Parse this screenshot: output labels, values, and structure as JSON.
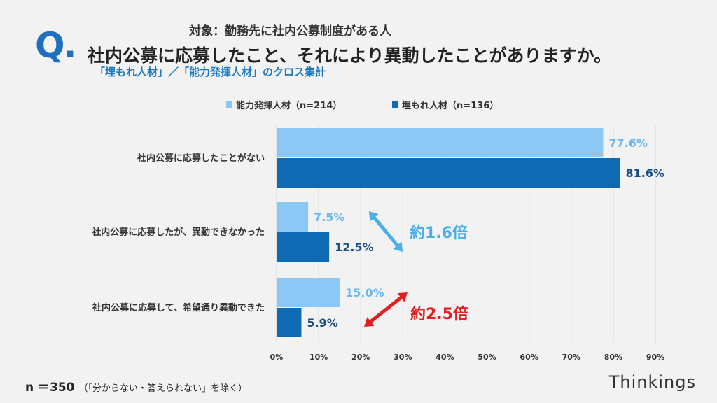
{
  "header": {
    "q_mark": "Q.",
    "target": "対象：勤務先に社内公募制度がある人",
    "title": "社内公募に応募したこと、それにより異動したことがありますか。",
    "subtitle": "「埋もれ人材」／「能力発揮人材」のクロス集計"
  },
  "footer": {
    "n": "n ＝350",
    "note": "（「分からない・答えられない」を除く）",
    "brand": "Thinkings"
  },
  "chart_data": {
    "type": "bar",
    "orientation": "horizontal",
    "categories": [
      "社内公募に応募したことがない",
      "社内公募に応募したが、異動できなかった",
      "社内公募に応募して、希望通り異動できた"
    ],
    "series": [
      {
        "name": "能力発揮人材（n=214）",
        "values": [
          77.6,
          7.5,
          15.0
        ],
        "labels": [
          "77.6%",
          "7.5%",
          "15.0%"
        ],
        "color": "#8cc8f5"
      },
      {
        "name": "埋もれ人材（n=136）",
        "values": [
          81.6,
          12.5,
          5.9
        ],
        "labels": [
          "81.6%",
          "12.5%",
          "5.9%"
        ],
        "color": "#0f6ab4"
      }
    ],
    "xlim": [
      0,
      90
    ],
    "xticks": [
      "0%",
      "10%",
      "20%",
      "30%",
      "40%",
      "50%",
      "60%",
      "70%",
      "80%",
      "90%"
    ],
    "grid": true,
    "legend": "top",
    "annotations": [
      {
        "text": "約1.6倍",
        "color": "#4aaee8"
      },
      {
        "text": "約2.5倍",
        "color": "#e02020"
      }
    ]
  }
}
